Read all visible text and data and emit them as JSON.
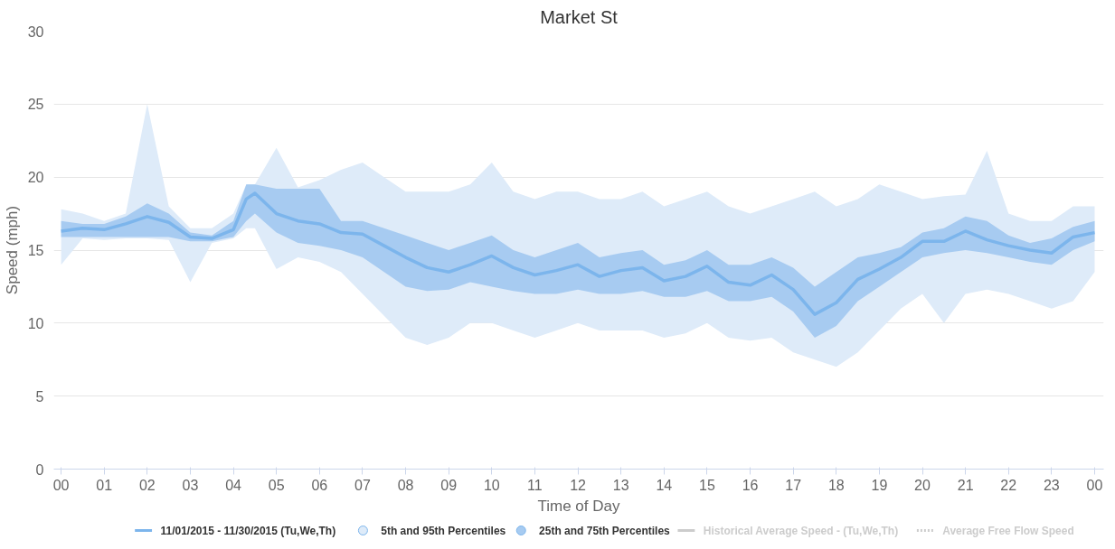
{
  "chart_data": {
    "type": "line",
    "title": "Market St",
    "xlabel": "Time of Day",
    "ylabel": "Speed (mph)",
    "x": [
      0,
      0.5,
      1,
      1.5,
      2,
      2.5,
      3,
      3.5,
      4,
      4.3,
      4.5,
      5,
      5.5,
      6,
      6.5,
      7,
      7.5,
      8,
      8.5,
      9,
      9.5,
      10,
      10.5,
      11,
      11.5,
      12,
      12.5,
      13,
      13.5,
      14,
      14.5,
      15,
      15.5,
      16,
      16.5,
      17,
      17.5,
      18,
      18.5,
      19,
      19.5,
      20,
      20.5,
      21,
      21.5,
      22,
      22.5,
      23,
      23.5,
      24
    ],
    "series": [
      {
        "name": "5th and 95th Percentiles",
        "color": "#deebf9",
        "values": [
          null,
          null,
          null,
          null,
          null,
          null,
          null,
          null,
          null,
          null,
          null,
          null,
          null,
          null,
          null,
          null,
          null,
          null,
          null,
          null,
          null,
          null,
          null,
          null,
          null,
          null,
          null,
          null,
          null,
          null,
          null,
          null,
          null,
          null,
          null,
          null,
          null,
          null,
          null,
          null,
          null,
          null,
          null,
          null,
          null,
          null,
          null,
          null,
          null,
          null
        ],
        "lower": [
          14.0,
          15.8,
          15.7,
          15.8,
          15.8,
          15.7,
          12.8,
          15.5,
          15.8,
          16.5,
          16.5,
          13.7,
          14.5,
          14.2,
          13.5,
          12.0,
          10.5,
          9.0,
          8.5,
          9.0,
          10.0,
          10.0,
          9.5,
          9.0,
          9.5,
          10.0,
          9.5,
          9.5,
          9.5,
          9.0,
          9.3,
          10.0,
          9.0,
          8.8,
          9.0,
          8.0,
          7.5,
          7.0,
          8.0,
          9.5,
          11.0,
          12.0,
          10.0,
          12.0,
          12.3,
          12.0,
          11.5,
          11.0,
          11.5,
          13.5
        ],
        "upper": [
          17.8,
          17.5,
          17.0,
          17.5,
          25.0,
          18.0,
          16.5,
          16.5,
          17.5,
          19.5,
          19.5,
          22.0,
          19.3,
          19.8,
          20.5,
          21.0,
          20.0,
          19.0,
          19.0,
          19.0,
          19.5,
          21.0,
          19.0,
          18.5,
          19.0,
          19.0,
          18.5,
          18.5,
          19.0,
          18.0,
          18.5,
          19.0,
          18.0,
          17.5,
          18.0,
          18.5,
          19.0,
          18.0,
          18.5,
          19.5,
          19.0,
          18.5,
          18.7,
          18.8,
          21.8,
          17.5,
          17.0,
          17.0,
          18.0,
          18.0
        ]
      },
      {
        "name": "25th and 75th Percentiles",
        "color": "#a7cbf1",
        "values": [
          null,
          null,
          null,
          null,
          null,
          null,
          null,
          null,
          null,
          null,
          null,
          null,
          null,
          null,
          null,
          null,
          null,
          null,
          null,
          null,
          null,
          null,
          null,
          null,
          null,
          null,
          null,
          null,
          null,
          null,
          null,
          null,
          null,
          null,
          null,
          null,
          null,
          null,
          null,
          null,
          null,
          null,
          null,
          null,
          null,
          null,
          null,
          null,
          null,
          null
        ],
        "lower": [
          15.9,
          15.9,
          15.9,
          15.9,
          15.9,
          15.9,
          15.6,
          15.6,
          15.9,
          17.0,
          17.5,
          16.2,
          15.5,
          15.3,
          15.0,
          14.5,
          13.5,
          12.5,
          12.2,
          12.3,
          12.8,
          12.5,
          12.2,
          12.0,
          12.0,
          12.3,
          12.0,
          12.0,
          12.2,
          11.8,
          11.8,
          12.2,
          11.5,
          11.5,
          11.8,
          10.8,
          9.0,
          9.8,
          11.5,
          12.5,
          13.5,
          14.5,
          14.8,
          15.0,
          14.8,
          14.5,
          14.2,
          14.0,
          15.0,
          15.6
        ],
        "upper": [
          17.0,
          16.8,
          16.8,
          17.3,
          18.2,
          17.5,
          16.2,
          16.0,
          17.0,
          19.5,
          19.5,
          19.2,
          19.2,
          19.2,
          17.0,
          17.0,
          16.5,
          16.0,
          15.5,
          15.0,
          15.5,
          16.0,
          15.0,
          14.5,
          15.0,
          15.5,
          14.5,
          14.8,
          15.0,
          14.0,
          14.3,
          15.0,
          14.0,
          14.0,
          14.5,
          13.8,
          12.5,
          13.5,
          14.5,
          14.8,
          15.2,
          16.2,
          16.5,
          17.3,
          17.0,
          16.0,
          15.5,
          15.8,
          16.6,
          17.0
        ]
      },
      {
        "name": "11/01/2015 - 11/30/2015 (Tu,We,Th)",
        "color": "#7cb5ec",
        "values": [
          16.3,
          16.5,
          16.4,
          16.8,
          17.3,
          16.9,
          15.9,
          15.8,
          16.4,
          18.5,
          18.9,
          17.5,
          17.0,
          16.8,
          16.2,
          16.1,
          15.3,
          14.5,
          13.8,
          13.5,
          14.0,
          14.6,
          13.8,
          13.3,
          13.6,
          14.0,
          13.2,
          13.6,
          13.8,
          12.9,
          13.2,
          13.9,
          12.8,
          12.6,
          13.3,
          12.3,
          10.6,
          11.4,
          13.0,
          13.7,
          14.5,
          15.6,
          15.6,
          16.3,
          15.7,
          15.3,
          15.0,
          14.8,
          15.9,
          16.2
        ]
      },
      {
        "name": "Historical Average Speed - (Tu,We,Th)",
        "color": "#cccccc",
        "values": [
          null,
          null,
          null,
          null,
          null,
          null,
          null,
          null,
          null,
          null,
          null,
          null,
          null,
          null,
          null,
          null,
          null,
          null,
          null,
          null,
          null,
          null,
          null,
          null,
          null,
          null,
          null,
          null,
          null,
          null,
          null,
          null,
          null,
          null,
          null,
          null,
          null,
          null,
          null,
          null,
          null,
          null,
          null,
          null,
          null,
          null,
          null,
          null,
          null,
          null
        ]
      },
      {
        "name": "Average Free Flow Speed",
        "color": "#cccccc",
        "line_style": "dotted",
        "values": [
          null,
          null,
          null,
          null,
          null,
          null,
          null,
          null,
          null,
          null,
          null,
          null,
          null,
          null,
          null,
          null,
          null,
          null,
          null,
          null,
          null,
          null,
          null,
          null,
          null,
          null,
          null,
          null,
          null,
          null,
          null,
          null,
          null,
          null,
          null,
          null,
          null,
          null,
          null,
          null,
          null,
          null,
          null,
          null,
          null,
          null,
          null,
          null,
          null,
          null
        ]
      }
    ],
    "xlim": [
      -0.17,
      24.21
    ],
    "xticks": [
      {
        "value": 0,
        "label": "00"
      },
      {
        "value": 1,
        "label": "01"
      },
      {
        "value": 2,
        "label": "02"
      },
      {
        "value": 3,
        "label": "03"
      },
      {
        "value": 4,
        "label": "04"
      },
      {
        "value": 5,
        "label": "05"
      },
      {
        "value": 6,
        "label": "06"
      },
      {
        "value": 7,
        "label": "07"
      },
      {
        "value": 8,
        "label": "08"
      },
      {
        "value": 9,
        "label": "09"
      },
      {
        "value": 10,
        "label": "10"
      },
      {
        "value": 11,
        "label": "11"
      },
      {
        "value": 12,
        "label": "12"
      },
      {
        "value": 13,
        "label": "13"
      },
      {
        "value": 14,
        "label": "14"
      },
      {
        "value": 15,
        "label": "15"
      },
      {
        "value": 16,
        "label": "16"
      },
      {
        "value": 17,
        "label": "17"
      },
      {
        "value": 18,
        "label": "18"
      },
      {
        "value": 19,
        "label": "19"
      },
      {
        "value": 20,
        "label": "20"
      },
      {
        "value": 21,
        "label": "21"
      },
      {
        "value": 22,
        "label": "22"
      },
      {
        "value": 23,
        "label": "23"
      },
      {
        "value": 24,
        "label": "00"
      }
    ],
    "ylim": [
      0,
      30
    ],
    "yticks": [
      0,
      5,
      10,
      15,
      20,
      25,
      30
    ],
    "grid": "y",
    "legend": "bottom",
    "marker": "none",
    "line_style": "solid"
  }
}
